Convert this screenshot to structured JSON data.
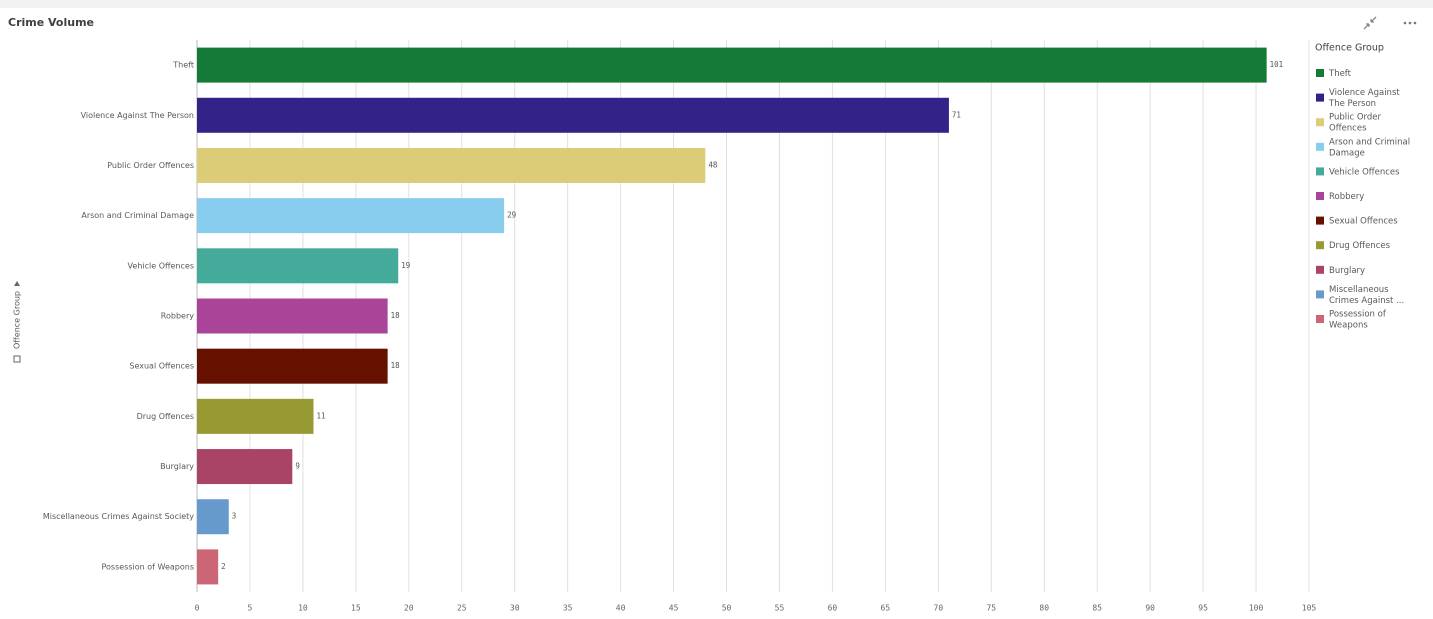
{
  "chart_data": {
    "type": "bar",
    "title": "Crime Volume",
    "y_label": "Offence Group",
    "categories": [
      "Theft",
      "Violence Against The Person",
      "Public Order Offences",
      "Arson and Criminal Damage",
      "Vehicle Offences",
      "Robbery",
      "Sexual Offences",
      "Drug Offences",
      "Burglary",
      "Miscellaneous Crimes Against Society",
      "Possession of Weapons"
    ],
    "values": [
      101,
      71,
      48,
      29,
      19,
      18,
      18,
      11,
      9,
      3,
      2
    ],
    "colors": [
      "#137a38",
      "#332288",
      "#ddcc77",
      "#88ccee",
      "#44aa99",
      "#aa4499",
      "#661100",
      "#999933",
      "#aa4466",
      "#6699cc",
      "#cc6677"
    ],
    "xlim": [
      0,
      105
    ],
    "xticks": [
      0,
      5,
      10,
      15,
      20,
      25,
      30,
      35,
      40,
      45,
      50,
      55,
      60,
      65,
      70,
      75,
      80,
      85,
      90,
      95,
      100,
      105
    ],
    "grid": true,
    "legend": {
      "title": "Offence Group",
      "labels": [
        "Theft",
        "Violence Against The Person",
        "Public Order Offences",
        "Arson and Criminal Damage",
        "Vehicle Offences",
        "Robbery",
        "Sexual Offences",
        "Drug Offences",
        "Burglary",
        "Miscellaneous Crimes Against ...",
        "Possession of Weapons"
      ]
    }
  }
}
